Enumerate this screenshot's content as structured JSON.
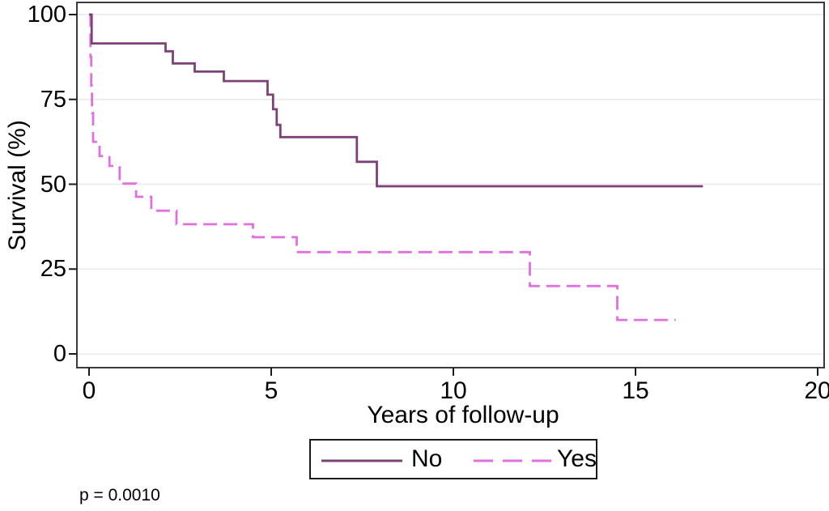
{
  "page": {
    "background": "#FFFFFF"
  },
  "chart_data": {
    "type": "line",
    "subtype": "kaplan-meier-survival-step",
    "title": "",
    "xlabel": "Years of follow-up",
    "ylabel": "Survival (%)",
    "xlim": [
      0,
      20
    ],
    "ylim": [
      0,
      100
    ],
    "xticks": [
      0,
      5,
      10,
      15,
      20
    ],
    "yticks": [
      0,
      25,
      50,
      75,
      100
    ],
    "grid": "horizontal-only",
    "legend_position": "bottom-center",
    "annotation": "p = 0.0010",
    "colors": {
      "grid": "#E8E8E8",
      "frame": "#3A3A3A",
      "tick": "#1A1A1A",
      "text": "#000000"
    },
    "series": [
      {
        "name": "No",
        "color": "#7C4178",
        "line_style": "solid",
        "points": [
          [
            0,
            100
          ],
          [
            0.07,
            91.5
          ],
          [
            2.1,
            89.2
          ],
          [
            2.3,
            85.6
          ],
          [
            2.9,
            83.2
          ],
          [
            3.7,
            80.4
          ],
          [
            4.9,
            76.4
          ],
          [
            5.05,
            72.1
          ],
          [
            5.15,
            67.5
          ],
          [
            5.25,
            63.9
          ],
          [
            7.35,
            56.6
          ],
          [
            7.9,
            49.4
          ],
          [
            16.85,
            49.4
          ]
        ]
      },
      {
        "name": "Yes",
        "color": "#E26FE0",
        "line_style": "dashed",
        "points": [
          [
            0,
            100
          ],
          [
            0.04,
            87.5
          ],
          [
            0.06,
            79
          ],
          [
            0.08,
            71
          ],
          [
            0.11,
            62.5
          ],
          [
            0.29,
            58.3
          ],
          [
            0.56,
            55.4
          ],
          [
            0.84,
            50.2
          ],
          [
            1.29,
            46.3
          ],
          [
            1.71,
            42.2
          ],
          [
            2.4,
            38.2
          ],
          [
            4.5,
            34.4
          ],
          [
            5.7,
            30
          ],
          [
            12.1,
            20
          ],
          [
            14.5,
            10
          ],
          [
            16.1,
            10
          ]
        ]
      }
    ]
  }
}
